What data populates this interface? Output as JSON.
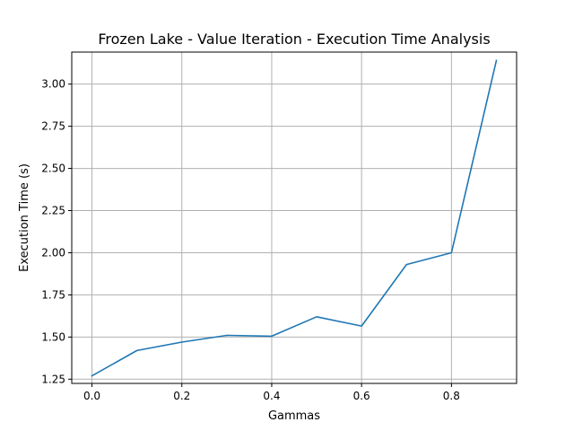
{
  "chart_data": {
    "type": "line",
    "title": "Frozen Lake - Value Iteration - Execution Time Analysis",
    "xlabel": "Gammas",
    "ylabel": "Execution Time (s)",
    "xlim": [
      -0.045,
      0.945
    ],
    "ylim": [
      1.225,
      3.19
    ],
    "x_ticks": [
      0.0,
      0.2,
      0.4,
      0.6,
      0.8
    ],
    "x_tick_labels": [
      "0.0",
      "0.2",
      "0.4",
      "0.6",
      "0.8"
    ],
    "y_ticks": [
      1.25,
      1.5,
      1.75,
      2.0,
      2.25,
      2.5,
      2.75,
      3.0
    ],
    "y_tick_labels": [
      "1.25",
      "1.50",
      "1.75",
      "2.00",
      "2.25",
      "2.50",
      "2.75",
      "3.00"
    ],
    "grid": true,
    "series": [
      {
        "color": "#1f77b4",
        "x": [
          0.0,
          0.1,
          0.2,
          0.3,
          0.4,
          0.5,
          0.6,
          0.7,
          0.8,
          0.9
        ],
        "y": [
          1.27,
          1.42,
          1.47,
          1.51,
          1.505,
          1.62,
          1.565,
          1.93,
          2.0,
          3.14
        ]
      }
    ]
  }
}
